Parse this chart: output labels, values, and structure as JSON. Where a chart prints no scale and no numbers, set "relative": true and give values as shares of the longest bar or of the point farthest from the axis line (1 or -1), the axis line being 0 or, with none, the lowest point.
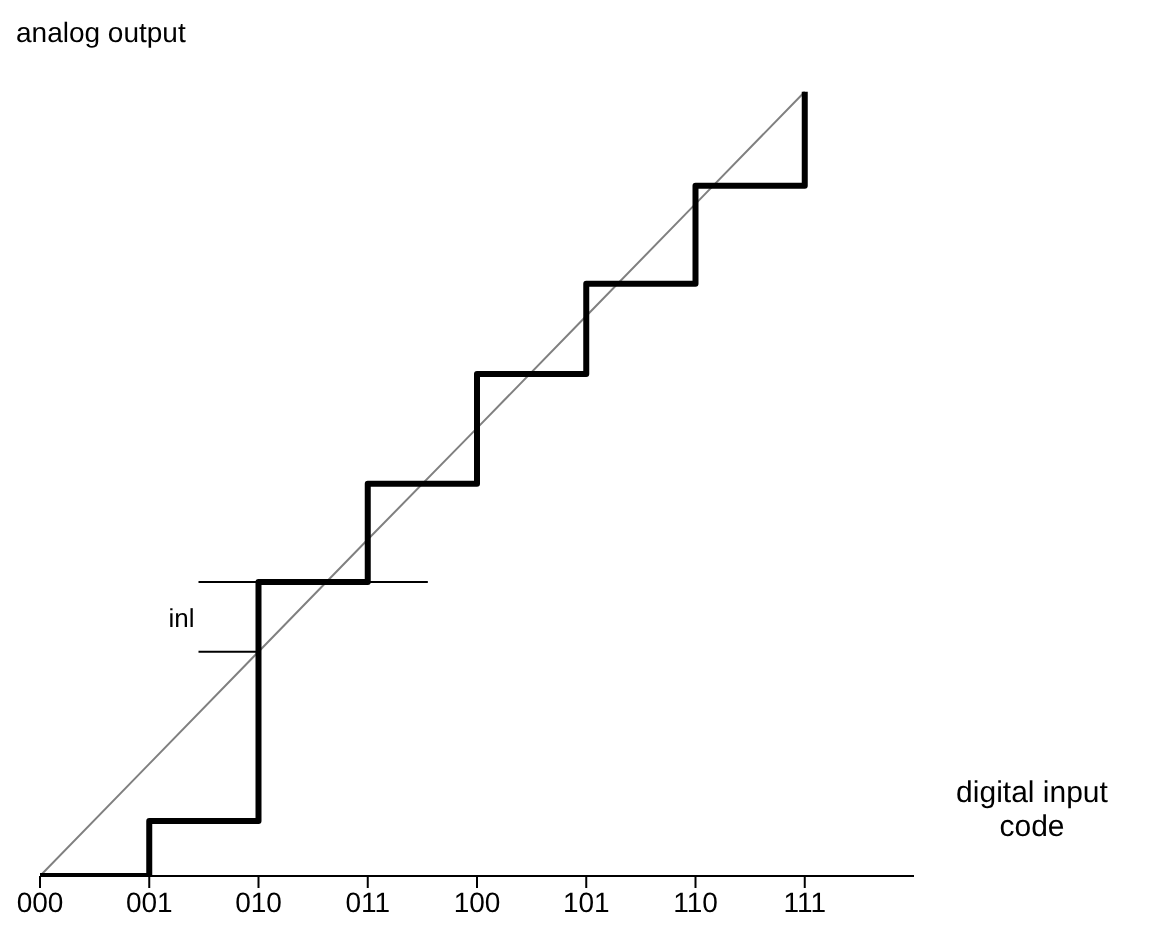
{
  "chart_data": {
    "type": "step",
    "relative": true,
    "xlabel": "digital input code",
    "ylabel": "analog output",
    "categories": [
      "000",
      "001",
      "010",
      "011",
      "100",
      "101",
      "110",
      "111"
    ],
    "series": [
      {
        "type": "line",
        "color": "#808080",
        "values": [
          0,
          0.143,
          0.286,
          0.429,
          0.571,
          0.714,
          0.857,
          1
        ]
      },
      {
        "color": "#000000",
        "values": [
          0,
          0.07,
          0.375,
          0.5,
          0.64,
          0.755,
          0.88,
          1
        ]
      }
    ],
    "annotations": [
      {
        "text": "inl",
        "x": "010",
        "y": 0.33
      }
    ],
    "legend": false,
    "grid": false
  }
}
